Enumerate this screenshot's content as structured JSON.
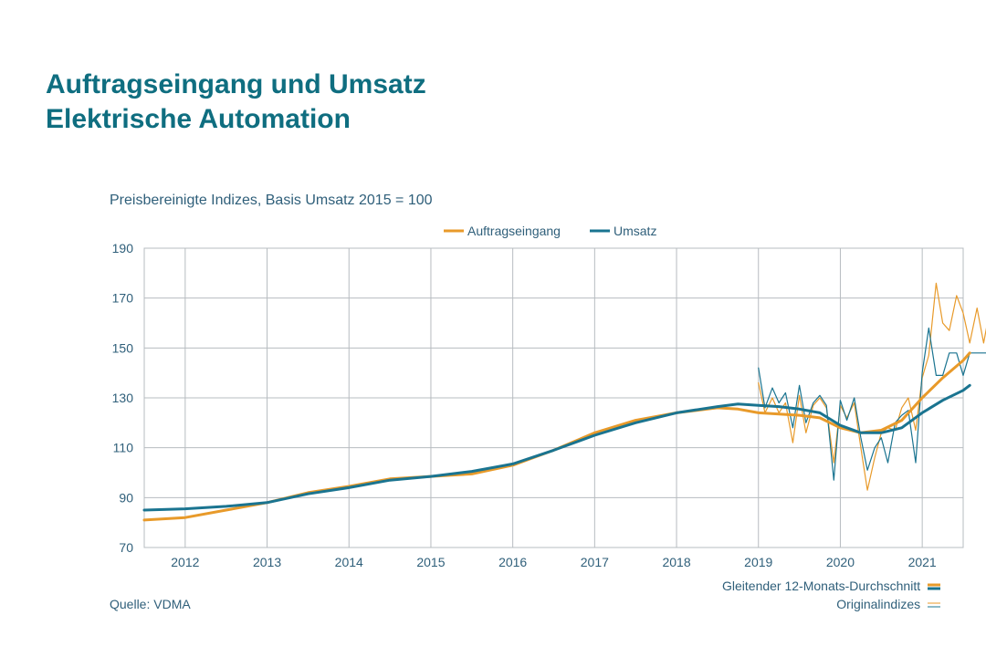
{
  "page": {
    "title_line1": "Auftragseingang und Umsatz",
    "title_line2": "Elektrische Automation",
    "source": "Quelle: VDMA",
    "note_moving_average": "Gleitender 12-Monats-Durchschnitt",
    "note_original": "Originalindizes"
  },
  "colors": {
    "orders": "#e89a2a",
    "sales": "#1a7490",
    "grid": "#b7bcc0",
    "title": "#0f6e80"
  },
  "chart_data": {
    "type": "line",
    "subtitle": "Preisbereinigte Indizes, Basis Umsatz 2015 = 100",
    "legend": [
      "Auftragseingang",
      "Umsatz"
    ],
    "legend_position": "top-right",
    "grid": true,
    "ylim": [
      70,
      190
    ],
    "yticks": [
      "70",
      "90",
      "110",
      "130",
      "150",
      "170",
      "190"
    ],
    "xlim": [
      2011.5,
      2021.5
    ],
    "xtick_labels": [
      "2012",
      "2013",
      "2014",
      "2015",
      "2016",
      "2017",
      "2018",
      "2019",
      "2020",
      "2021"
    ],
    "series": [
      {
        "name": "Auftragseingang",
        "kind": "Gleitender 12-Monats-Durchschnitt",
        "x": [
          2011.5,
          2012.0,
          2012.5,
          2013.0,
          2013.5,
          2014.0,
          2014.5,
          2015.0,
          2015.5,
          2016.0,
          2016.5,
          2017.0,
          2017.5,
          2018.0,
          2018.5,
          2018.75,
          2019.0,
          2019.25,
          2019.5,
          2019.75,
          2020.0,
          2020.25,
          2020.5,
          2020.75,
          2021.0,
          2021.25,
          2021.5,
          2021.58
        ],
        "values": [
          81,
          82,
          85,
          88,
          92,
          94.5,
          97.5,
          98.5,
          99.5,
          103,
          109,
          116,
          121,
          124,
          126,
          125.5,
          124,
          123.5,
          123,
          122,
          118,
          116,
          117,
          121,
          130,
          138,
          145,
          148
        ]
      },
      {
        "name": "Umsatz",
        "kind": "Gleitender 12-Monats-Durchschnitt",
        "x": [
          2011.5,
          2012.0,
          2012.5,
          2013.0,
          2013.5,
          2014.0,
          2014.5,
          2015.0,
          2015.5,
          2016.0,
          2016.5,
          2017.0,
          2017.5,
          2018.0,
          2018.5,
          2018.75,
          2019.0,
          2019.25,
          2019.5,
          2019.75,
          2020.0,
          2020.25,
          2020.5,
          2020.75,
          2021.0,
          2021.25,
          2021.5,
          2021.58
        ],
        "values": [
          85,
          85.5,
          86.5,
          88,
          91.5,
          94,
          97,
          98.5,
          100.5,
          103.5,
          109,
          115,
          120,
          124,
          126.5,
          127.5,
          127,
          126.5,
          125.5,
          124,
          119,
          116,
          116,
          118,
          124,
          129,
          133,
          135
        ]
      },
      {
        "name": "Auftragseingang",
        "kind": "Originalindizes",
        "x": [
          2019.0,
          2019.08,
          2019.17,
          2019.25,
          2019.33,
          2019.42,
          2019.5,
          2019.58,
          2019.67,
          2019.75,
          2019.83,
          2019.92,
          2020.0,
          2020.08,
          2020.17,
          2020.25,
          2020.33,
          2020.42,
          2020.5,
          2020.58,
          2020.67,
          2020.75,
          2020.83,
          2020.92,
          2021.0,
          2021.08,
          2021.17,
          2021.25,
          2021.33,
          2021.42,
          2021.5,
          2021.58,
          2021.67,
          2021.75,
          2021.83,
          2021.92
        ],
        "values": [
          136,
          124,
          130,
          124,
          128,
          112,
          131,
          116,
          127,
          130,
          126,
          104,
          127,
          122,
          128,
          110,
          93,
          106,
          116,
          118,
          117,
          126,
          130,
          117,
          138,
          147,
          176,
          160,
          157,
          171,
          164,
          152,
          166,
          152,
          166,
          166
        ]
      },
      {
        "name": "Umsatz",
        "kind": "Originalindizes",
        "x": [
          2019.0,
          2019.08,
          2019.17,
          2019.25,
          2019.33,
          2019.42,
          2019.5,
          2019.58,
          2019.67,
          2019.75,
          2019.83,
          2019.92,
          2020.0,
          2020.08,
          2020.17,
          2020.25,
          2020.33,
          2020.42,
          2020.5,
          2020.58,
          2020.67,
          2020.75,
          2020.83,
          2020.92,
          2021.0,
          2021.08,
          2021.17,
          2021.25,
          2021.33,
          2021.42,
          2021.5,
          2021.58,
          2021.67,
          2021.75,
          2021.83,
          2021.92
        ],
        "values": [
          142,
          126,
          134,
          128,
          132,
          118,
          135,
          120,
          128,
          131,
          127,
          97,
          129,
          121,
          130,
          114,
          101,
          110,
          114,
          104,
          120,
          123,
          125,
          104,
          140,
          158,
          139,
          139,
          148,
          148,
          139,
          148,
          148,
          148,
          148,
          148
        ]
      }
    ]
  }
}
